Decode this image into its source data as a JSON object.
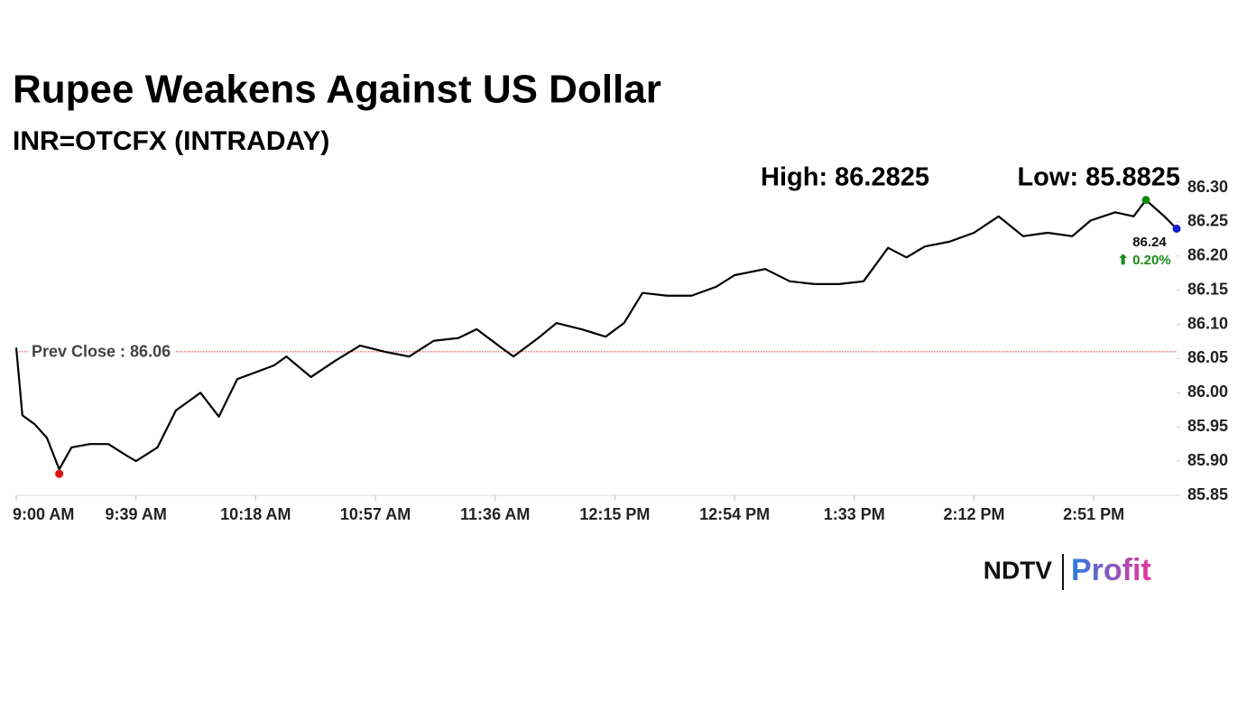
{
  "chart_data": {
    "type": "line",
    "title": "Rupee Weakens Against US Dollar",
    "subtitle": "INR=OTCFX (INTRADAY)",
    "high_label": "High: 86.2825",
    "low_label": "Low: 85.8825",
    "prev_close": {
      "value": 86.06,
      "label": "Prev Close : 86.06",
      "color": "#e03030"
    },
    "last_value": 86.24,
    "last_change": {
      "value": 0.2,
      "label": "⬆ 0.20%",
      "color": "#1a8a1a"
    },
    "x": [
      "9:00 AM",
      "9:02 AM",
      "9:06 AM",
      "9:10 AM",
      "9:14 AM",
      "9:18 AM",
      "9:24 AM",
      "9:30 AM",
      "9:36 AM",
      "9:39 AM",
      "9:46 AM",
      "9:52 AM",
      "10:00 AM",
      "10:06 AM",
      "10:12 AM",
      "10:18 AM",
      "10:24 AM",
      "10:28 AM",
      "10:36 AM",
      "10:44 AM",
      "10:52 AM",
      "11:00 AM",
      "11:08 AM",
      "11:16 AM",
      "11:24 AM",
      "11:30 AM",
      "11:38 AM",
      "11:42 AM",
      "11:50 AM",
      "11:56 AM",
      "12:04 PM",
      "12:12 PM",
      "12:18 PM",
      "12:24 PM",
      "12:32 PM",
      "12:40 PM",
      "12:48 PM",
      "12:54 PM",
      "1:04 PM",
      "1:12 PM",
      "1:20 PM",
      "1:28 PM",
      "1:36 PM",
      "1:44 PM",
      "1:50 PM",
      "1:56 PM",
      "2:04 PM",
      "2:12 PM",
      "2:20 PM",
      "2:28 PM",
      "2:36 PM",
      "2:44 PM",
      "2:50 PM",
      "2:58 PM",
      "3:04 PM",
      "3:08 PM",
      "3:14 PM",
      "3:18 PM"
    ],
    "series": [
      {
        "name": "INR=OTCFX",
        "color": "#000000",
        "values": [
          86.066,
          85.967,
          85.954,
          85.934,
          85.888,
          85.92,
          85.925,
          85.925,
          85.908,
          85.9,
          85.92,
          85.974,
          86.0,
          85.965,
          86.02,
          86.03,
          86.04,
          86.053,
          86.023,
          86.047,
          86.069,
          86.06,
          86.053,
          86.076,
          86.08,
          86.093,
          86.066,
          86.053,
          86.08,
          86.102,
          86.093,
          86.082,
          86.102,
          86.146,
          86.142,
          86.142,
          86.155,
          86.172,
          86.181,
          86.163,
          86.159,
          86.159,
          86.163,
          86.212,
          86.198,
          86.214,
          86.221,
          86.234,
          86.258,
          86.229,
          86.234,
          86.229,
          86.252,
          86.264,
          86.258,
          86.282,
          86.258,
          86.24
        ]
      }
    ],
    "xlim": [
      "9:00 AM",
      "3:18 PM"
    ],
    "xticks": [
      "9:00 AM",
      "9:39 AM",
      "10:18 AM",
      "10:57 AM",
      "11:36 AM",
      "12:15 PM",
      "12:54 PM",
      "1:33 PM",
      "2:12 PM",
      "2:51 PM"
    ],
    "ylim": [
      85.85,
      86.3
    ],
    "yticks": [
      85.85,
      {
        "value": 85.9,
        "label": "85.90"
      },
      85.95,
      {
        "value": 86.0,
        "label": "86.00"
      },
      86.05,
      {
        "value": 86.1,
        "label": "86.10"
      },
      86.15,
      {
        "value": 86.2,
        "label": "86.20"
      },
      86.25,
      {
        "value": 86.3,
        "label": "86.30"
      }
    ],
    "grid": false,
    "marker_colors": {
      "low": "#e01010",
      "high": "#128a12",
      "last": "#1020d0"
    },
    "logo": {
      "brand": "NDTV",
      "product": "Profit"
    }
  }
}
